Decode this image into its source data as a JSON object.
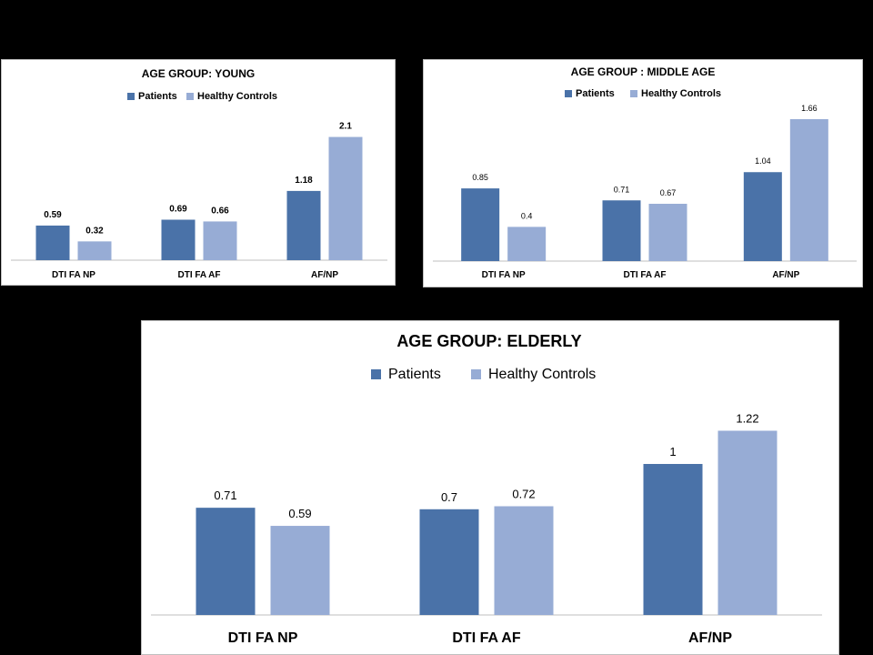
{
  "colors": {
    "patients": "#4a72a8",
    "controls": "#97acd5",
    "axis": "#bfbfbf"
  },
  "chart_data": [
    {
      "type": "bar",
      "title": "AGE GROUP: YOUNG",
      "categories": [
        "DTI FA NP",
        "DTI FA AF",
        "AF/NP"
      ],
      "series": [
        {
          "name": "Patients",
          "values": [
            0.59,
            0.69,
            1.18
          ]
        },
        {
          "name": "Healthy Controls",
          "values": [
            0.32,
            0.66,
            2.1
          ]
        }
      ],
      "legend": "top",
      "grid": false
    },
    {
      "type": "bar",
      "title": "AGE GROUP : MIDDLE AGE",
      "categories": [
        "DTI FA NP",
        "DTI FA AF",
        "AF/NP"
      ],
      "series": [
        {
          "name": "Patients",
          "values": [
            0.85,
            0.71,
            1.04
          ]
        },
        {
          "name": "Healthy Controls",
          "values": [
            0.4,
            0.67,
            1.66
          ]
        }
      ],
      "legend": "top",
      "grid": false
    },
    {
      "type": "bar",
      "title": "AGE GROUP: ELDERLY",
      "categories": [
        "DTI FA NP",
        "DTI FA AF",
        "AF/NP"
      ],
      "series": [
        {
          "name": "Patients",
          "values": [
            0.71,
            0.7,
            1
          ]
        },
        {
          "name": "Healthy Controls",
          "values": [
            0.59,
            0.72,
            1.22
          ]
        }
      ],
      "legend": "top",
      "grid": false
    }
  ]
}
